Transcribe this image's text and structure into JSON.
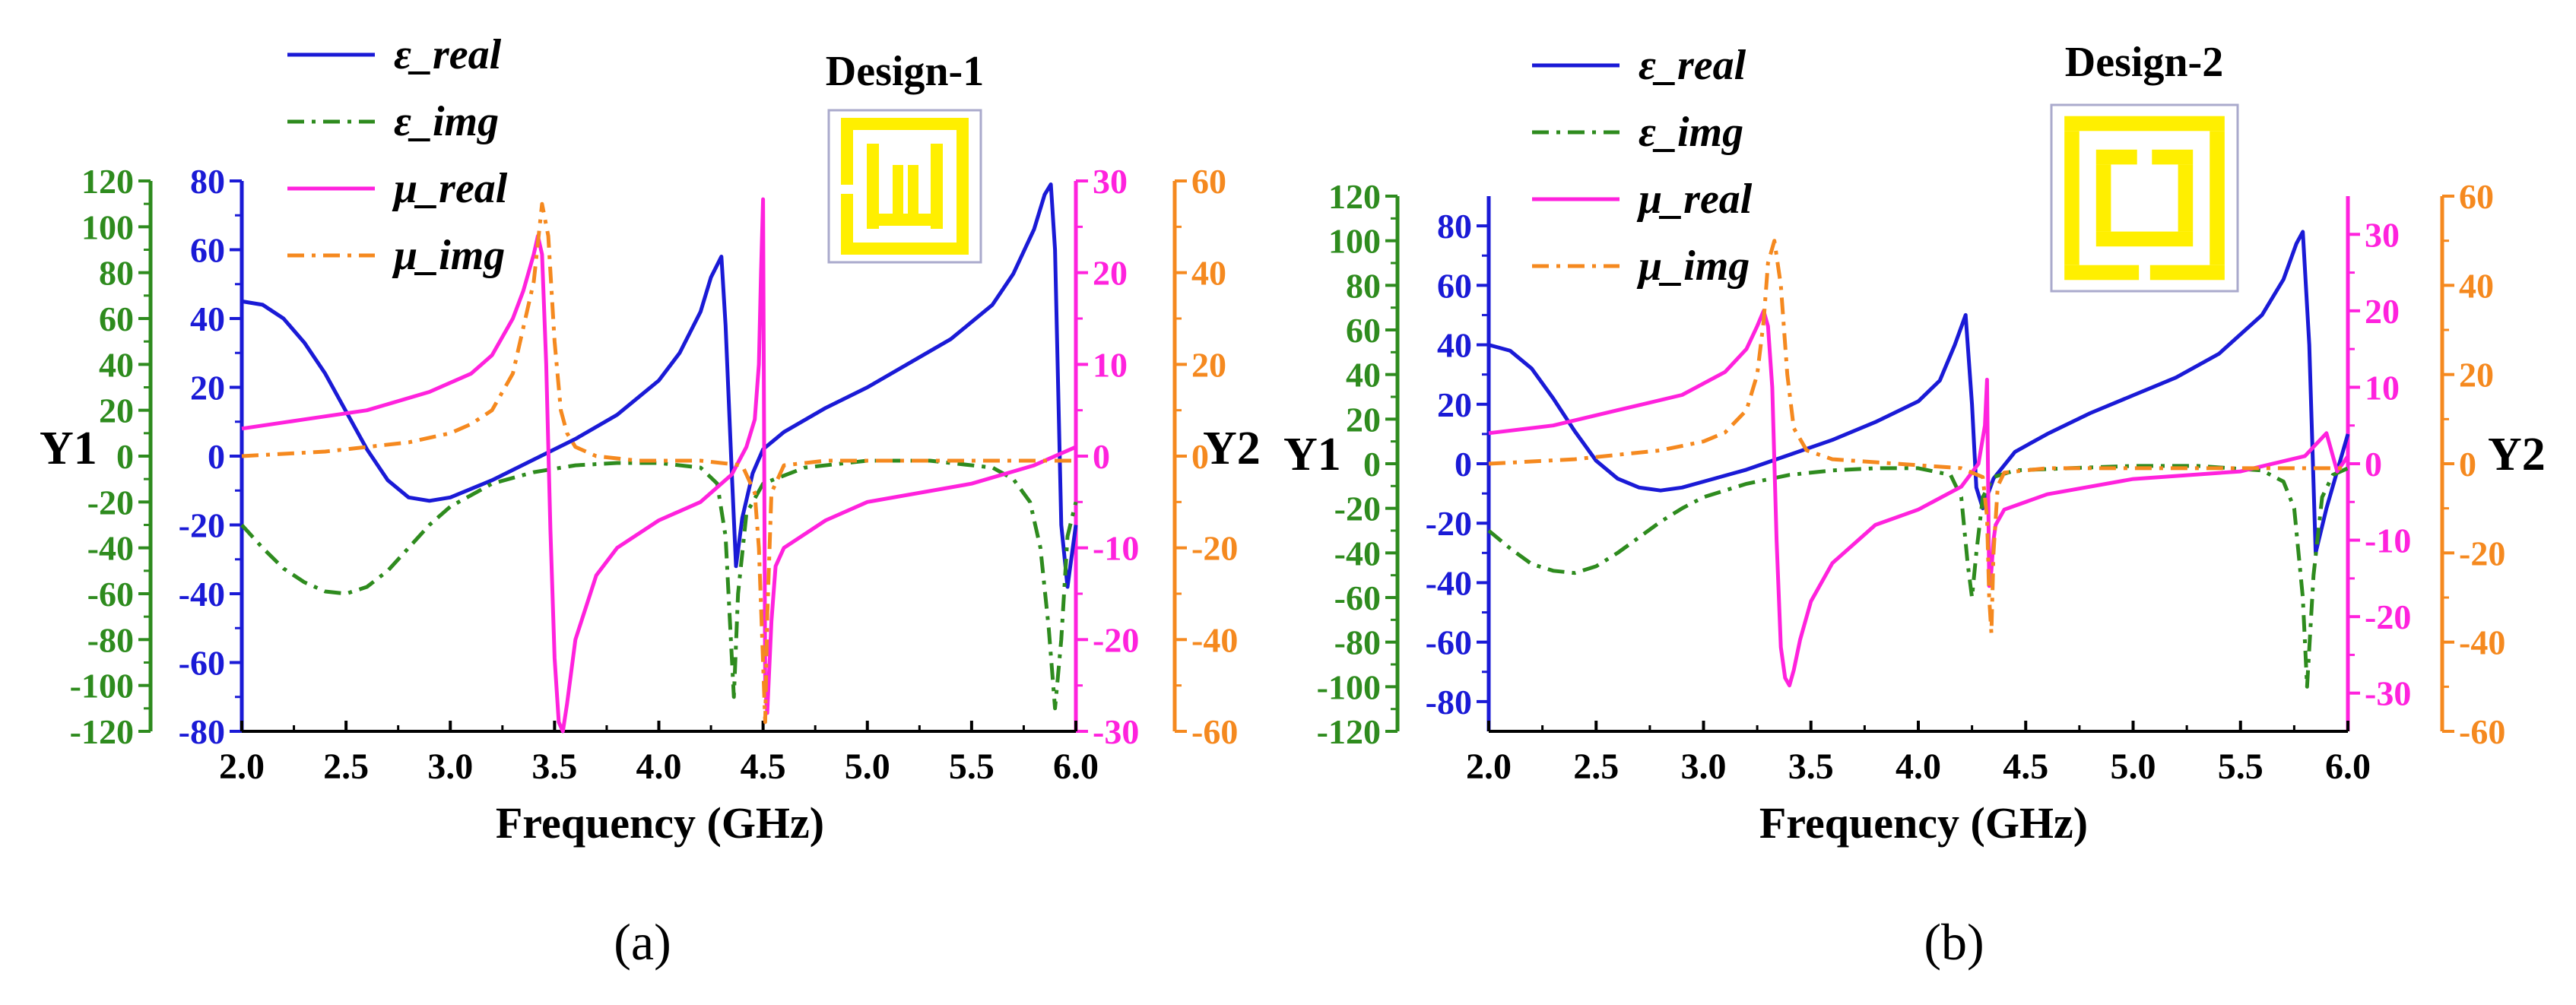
{
  "colors": {
    "eps_real": "#1a1ad6",
    "eps_img": "#2e8b1e",
    "mu_real": "#ff22dd",
    "mu_img": "#f5891f",
    "axis_left_outer": "#2e8b1e",
    "axis_left_inner": "#1a1ad6",
    "axis_right_inner": "#ff22dd",
    "axis_right_outer": "#f5891f",
    "design_fill": "#ffef00",
    "design_stroke": "#aaaacc"
  },
  "chart_data": [
    {
      "panel_label": "(a)",
      "design_label": "Design-1",
      "type": "line",
      "xlabel": "Frequency (GHz)",
      "xlim": [
        2.0,
        6.0
      ],
      "x_ticks": [
        "2.0",
        "2.5",
        "3.0",
        "3.5",
        "4.0",
        "4.5",
        "5.0",
        "5.5",
        "6.0"
      ],
      "y1_label": "Y1",
      "y2_label": "Y2",
      "axes": {
        "left_outer": {
          "range": [
            -120,
            120
          ],
          "ticks": [
            "120",
            "100",
            "80",
            "60",
            "40",
            "20",
            "0",
            "-20",
            "-40",
            "-60",
            "-80",
            "-100",
            "-120"
          ]
        },
        "left_inner": {
          "range": [
            -80,
            80
          ],
          "ticks": [
            "80",
            "60",
            "40",
            "20",
            "0",
            "-20",
            "-40",
            "-60",
            "-80"
          ]
        },
        "right_inner": {
          "range": [
            -30,
            30
          ],
          "ticks": [
            "30",
            "20",
            "10",
            "0",
            "-10",
            "-20",
            "-30"
          ]
        },
        "right_outer": {
          "range": [
            -60,
            60
          ],
          "ticks": [
            "60",
            "40",
            "20",
            "0",
            "-20",
            "-40",
            "-60"
          ]
        }
      },
      "legend": [
        "ε_real",
        "ε_img",
        "μ_real",
        "μ_img"
      ],
      "series": [
        {
          "name": "ε_real",
          "axis": "left_inner",
          "style": "solid",
          "x": [
            2.0,
            2.1,
            2.2,
            2.3,
            2.4,
            2.5,
            2.6,
            2.7,
            2.8,
            2.9,
            3.0,
            3.2,
            3.4,
            3.6,
            3.8,
            4.0,
            4.1,
            4.2,
            4.25,
            4.3,
            4.32,
            4.35,
            4.37,
            4.4,
            4.45,
            4.5,
            4.6,
            4.8,
            5.0,
            5.2,
            5.4,
            5.6,
            5.7,
            5.8,
            5.85,
            5.88,
            5.9,
            5.93,
            5.96,
            6.0
          ],
          "y": [
            45,
            44,
            40,
            33,
            24,
            13,
            2,
            -7,
            -12,
            -13,
            -12,
            -7,
            -1,
            5,
            12,
            22,
            30,
            42,
            52,
            58,
            38,
            -5,
            -32,
            -18,
            -5,
            2,
            7,
            14,
            20,
            27,
            34,
            44,
            53,
            66,
            76,
            79,
            60,
            -20,
            -38,
            -20
          ]
        },
        {
          "name": "ε_img",
          "axis": "left_outer",
          "style": "dashdot",
          "x": [
            2.0,
            2.1,
            2.2,
            2.3,
            2.4,
            2.5,
            2.6,
            2.7,
            2.8,
            2.9,
            3.0,
            3.2,
            3.4,
            3.6,
            3.8,
            4.0,
            4.2,
            4.28,
            4.32,
            4.34,
            4.36,
            4.38,
            4.42,
            4.5,
            4.7,
            5.0,
            5.3,
            5.6,
            5.7,
            5.78,
            5.83,
            5.87,
            5.9,
            5.93,
            5.96,
            6.0
          ],
          "y": [
            -30,
            -40,
            -49,
            -55,
            -59,
            -60,
            -57,
            -50,
            -40,
            -30,
            -22,
            -12,
            -7,
            -4,
            -3,
            -3,
            -5,
            -12,
            -35,
            -70,
            -105,
            -60,
            -25,
            -12,
            -5,
            -2,
            -2,
            -5,
            -10,
            -20,
            -40,
            -75,
            -110,
            -80,
            -35,
            -20
          ]
        },
        {
          "name": "μ_real",
          "axis": "right_inner",
          "style": "solid",
          "x": [
            2.0,
            2.3,
            2.6,
            2.9,
            3.1,
            3.2,
            3.3,
            3.35,
            3.4,
            3.42,
            3.44,
            3.46,
            3.48,
            3.5,
            3.52,
            3.54,
            3.56,
            3.6,
            3.7,
            3.8,
            4.0,
            4.2,
            4.35,
            4.42,
            4.46,
            4.48,
            4.49,
            4.5,
            4.51,
            4.52,
            4.54,
            4.56,
            4.6,
            4.8,
            5.0,
            5.5,
            5.8,
            6.0
          ],
          "y": [
            3,
            4,
            5,
            7,
            9,
            11,
            15,
            18,
            22,
            24,
            22,
            10,
            -8,
            -22,
            -29,
            -30,
            -27,
            -20,
            -13,
            -10,
            -7,
            -5,
            -2,
            1,
            4,
            10,
            20,
            28,
            -25,
            -28,
            -18,
            -12,
            -10,
            -7,
            -5,
            -3,
            -1,
            1
          ]
        },
        {
          "name": "μ_img",
          "axis": "right_outer",
          "style": "dashdot",
          "x": [
            2.0,
            2.4,
            2.8,
            3.0,
            3.1,
            3.2,
            3.3,
            3.4,
            3.44,
            3.47,
            3.5,
            3.53,
            3.56,
            3.6,
            3.7,
            3.9,
            4.2,
            4.4,
            4.46,
            4.48,
            4.5,
            4.51,
            4.52,
            4.54,
            4.6,
            4.8,
            5.2,
            5.6,
            5.9,
            6.0
          ],
          "y": [
            0,
            1,
            3,
            5,
            7,
            10,
            18,
            38,
            55,
            48,
            25,
            10,
            5,
            2,
            0,
            -1,
            -1,
            -2,
            -8,
            -20,
            -45,
            -58,
            -35,
            -8,
            -2,
            -1,
            -1,
            -1,
            -1,
            -1
          ]
        }
      ]
    },
    {
      "panel_label": "(b)",
      "design_label": "Design-2",
      "type": "line",
      "xlabel": "Frequency (GHz)",
      "xlim": [
        2.0,
        6.0
      ],
      "x_ticks": [
        "2.0",
        "2.5",
        "3.0",
        "3.5",
        "4.0",
        "4.5",
        "5.0",
        "5.5",
        "6.0"
      ],
      "y1_label": "Y1",
      "y2_label": "Y2",
      "axes": {
        "left_outer": {
          "range": [
            -120,
            120
          ],
          "ticks": [
            "120",
            "100",
            "80",
            "60",
            "40",
            "20",
            "0",
            "-20",
            "-40",
            "-60",
            "-80",
            "-100",
            "-120"
          ]
        },
        "left_inner": {
          "range": [
            -90,
            90
          ],
          "ticks": [
            "80",
            "60",
            "40",
            "20",
            "0",
            "-20",
            "-40",
            "-60",
            "-80"
          ]
        },
        "right_inner": {
          "range": [
            -35,
            35
          ],
          "ticks": [
            "30",
            "20",
            "10",
            "0",
            "-10",
            "-20",
            "-30"
          ]
        },
        "right_outer": {
          "range": [
            -60,
            60
          ],
          "ticks": [
            "60",
            "40",
            "20",
            "0",
            "-20",
            "-40",
            "-60"
          ]
        }
      },
      "legend": [
        "ε_real",
        "ε_img",
        "μ_real",
        "μ_img"
      ],
      "series": [
        {
          "name": "ε_real",
          "axis": "left_inner",
          "style": "solid",
          "x": [
            2.0,
            2.1,
            2.2,
            2.3,
            2.4,
            2.5,
            2.6,
            2.7,
            2.8,
            2.9,
            3.0,
            3.2,
            3.4,
            3.6,
            3.8,
            4.0,
            4.1,
            4.17,
            4.22,
            4.25,
            4.27,
            4.3,
            4.35,
            4.45,
            4.6,
            4.8,
            5.0,
            5.2,
            5.4,
            5.6,
            5.7,
            5.76,
            5.79,
            5.82,
            5.85,
            5.9,
            6.0
          ],
          "y": [
            40,
            38,
            32,
            22,
            11,
            1,
            -5,
            -8,
            -9,
            -8,
            -6,
            -2,
            3,
            8,
            14,
            21,
            28,
            40,
            50,
            20,
            -8,
            -15,
            -5,
            4,
            10,
            17,
            23,
            29,
            37,
            50,
            62,
            74,
            78,
            40,
            -30,
            -15,
            10
          ]
        },
        {
          "name": "ε_img",
          "axis": "left_outer",
          "style": "dashdot",
          "x": [
            2.0,
            2.1,
            2.2,
            2.3,
            2.4,
            2.5,
            2.6,
            2.7,
            2.8,
            2.9,
            3.0,
            3.2,
            3.4,
            3.6,
            3.8,
            4.0,
            4.15,
            4.2,
            4.23,
            4.25,
            4.27,
            4.3,
            4.35,
            4.45,
            4.7,
            5.0,
            5.3,
            5.6,
            5.7,
            5.75,
            5.79,
            5.81,
            5.84,
            5.88,
            5.93,
            6.0
          ],
          "y": [
            -30,
            -38,
            -45,
            -48,
            -49,
            -46,
            -40,
            -33,
            -26,
            -20,
            -15,
            -9,
            -5,
            -3,
            -2,
            -2,
            -5,
            -15,
            -45,
            -60,
            -40,
            -15,
            -6,
            -3,
            -2,
            -1,
            -1,
            -3,
            -8,
            -20,
            -60,
            -100,
            -50,
            -15,
            -5,
            -2
          ]
        },
        {
          "name": "μ_real",
          "axis": "right_inner",
          "style": "solid",
          "x": [
            2.0,
            2.3,
            2.6,
            2.9,
            3.1,
            3.2,
            3.25,
            3.28,
            3.3,
            3.32,
            3.34,
            3.36,
            3.38,
            3.4,
            3.42,
            3.45,
            3.5,
            3.6,
            3.8,
            4.0,
            4.2,
            4.28,
            4.31,
            4.32,
            4.33,
            4.34,
            4.35,
            4.36,
            4.4,
            4.6,
            5.0,
            5.5,
            5.8,
            5.9,
            5.95,
            6.0
          ],
          "y": [
            4,
            5,
            7,
            9,
            12,
            15,
            18,
            20,
            18,
            10,
            -10,
            -24,
            -28,
            -29,
            -27,
            -23,
            -18,
            -13,
            -8,
            -6,
            -3,
            0,
            5,
            11,
            -16,
            -14,
            -10,
            -8,
            -6,
            -4,
            -2,
            -1,
            1,
            4,
            -1,
            1
          ]
        },
        {
          "name": "μ_img",
          "axis": "right_outer",
          "style": "dashdot",
          "x": [
            2.0,
            2.4,
            2.8,
            3.0,
            3.1,
            3.2,
            3.25,
            3.28,
            3.3,
            3.33,
            3.36,
            3.39,
            3.42,
            3.48,
            3.6,
            3.9,
            4.2,
            4.3,
            4.32,
            4.33,
            4.34,
            4.35,
            4.37,
            4.4,
            4.6,
            5.2,
            5.8,
            6.0
          ],
          "y": [
            0,
            1,
            3,
            5,
            7,
            12,
            20,
            32,
            45,
            50,
            40,
            20,
            8,
            3,
            1,
            0,
            -1,
            -3,
            -12,
            -30,
            -38,
            -20,
            -5,
            -2,
            -1,
            -1,
            -1,
            -1
          ]
        }
      ]
    }
  ]
}
